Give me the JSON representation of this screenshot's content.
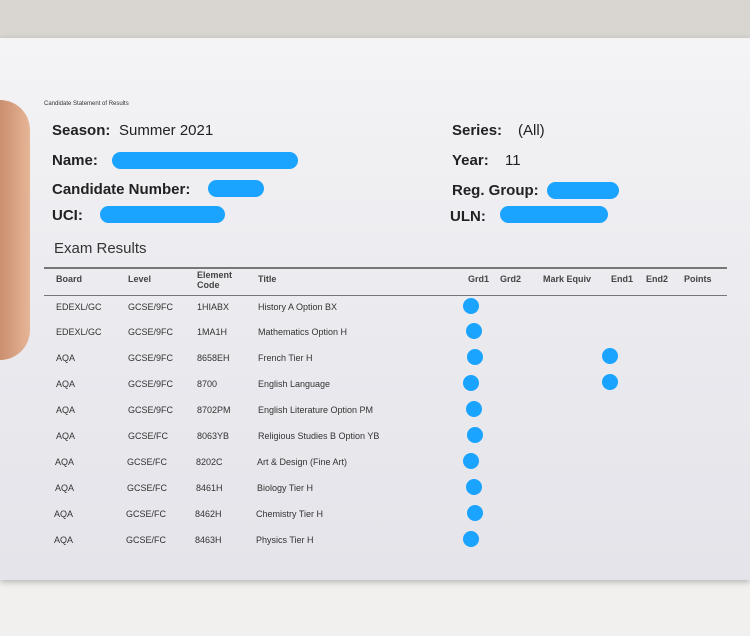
{
  "document": {
    "small_title": "Candidate Statement of Results",
    "season_label": "Season:",
    "season_value": "Summer 2021",
    "name_label": "Name:",
    "candidate_number_label": "Candidate Number:",
    "uci_label": "UCI:",
    "series_label": "Series:",
    "series_value": "(All)",
    "year_label": "Year:",
    "year_value": "11",
    "reg_group_label": "Reg. Group:",
    "uln_label": "ULN:",
    "section_title": "Exam Results",
    "redaction_color": "#1aa3ff"
  },
  "table": {
    "headers": [
      "Board",
      "Level",
      "Element Code",
      "Title",
      "Grd1",
      "Grd2",
      "Mark Equiv",
      "End1",
      "End2",
      "Points"
    ],
    "rows": [
      {
        "board": "EDEXL/GC",
        "level": "GCSE/9FC",
        "code": "1HIABX",
        "title": "History A Option BX",
        "end1_redacted": false
      },
      {
        "board": "EDEXL/GC",
        "level": "GCSE/9FC",
        "code": "1MA1H",
        "title": "Mathematics Option H",
        "end1_redacted": false
      },
      {
        "board": "AQA",
        "level": "GCSE/9FC",
        "code": "8658EH",
        "title": "French Tier H",
        "end1_redacted": true
      },
      {
        "board": "AQA",
        "level": "GCSE/9FC",
        "code": "8700",
        "title": "English Language",
        "end1_redacted": true
      },
      {
        "board": "AQA",
        "level": "GCSE/9FC",
        "code": "8702PM",
        "title": "English Literature Option PM",
        "end1_redacted": false
      },
      {
        "board": "AQA",
        "level": "GCSE/FC",
        "code": "8063YB",
        "title": "Religious Studies B Option YB",
        "end1_redacted": false
      },
      {
        "board": "AQA",
        "level": "GCSE/FC",
        "code": "8202C",
        "title": "Art & Design (Fine Art)",
        "end1_redacted": false
      },
      {
        "board": "AQA",
        "level": "GCSE/FC",
        "code": "8461H",
        "title": "Biology Tier H",
        "end1_redacted": false
      },
      {
        "board": "AQA",
        "level": "GCSE/FC",
        "code": "8462H",
        "title": "Chemistry Tier H",
        "end1_redacted": false
      },
      {
        "board": "AQA",
        "level": "GCSE/FC",
        "code": "8463H",
        "title": "Physics Tier H",
        "end1_redacted": false
      }
    ]
  }
}
